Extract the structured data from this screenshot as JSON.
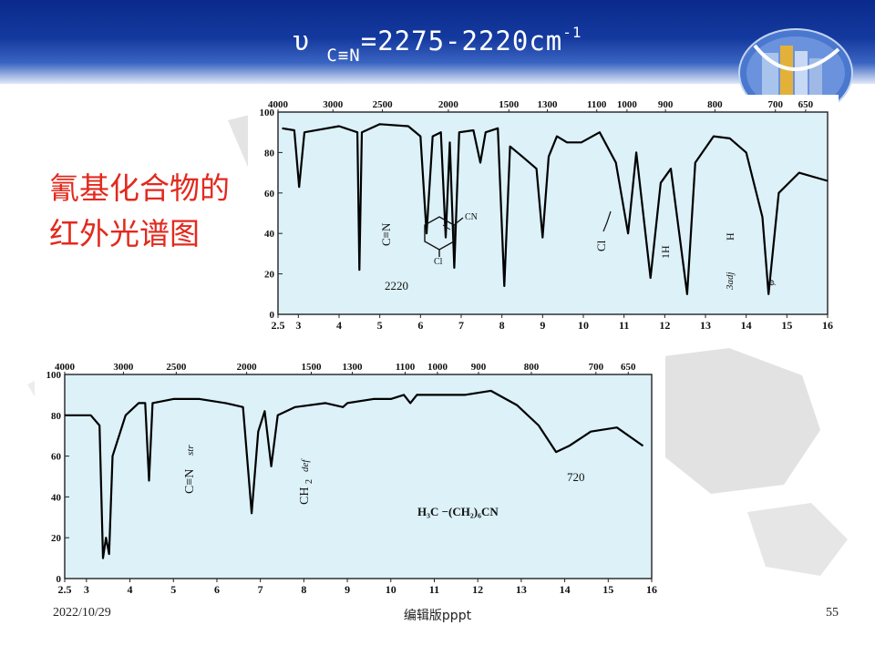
{
  "slide": {
    "title_symbol": "υ",
    "title_subscript": "C≡N",
    "title_main": "=2275-2220cm",
    "title_superscript": "-1",
    "side_title": "氰基化合物的红外光谱图",
    "footer_date": "2022/10/29",
    "footer_center": "编辑版pppt",
    "page_number": "55",
    "colors": {
      "header": "#14399e",
      "side_title": "#e22a1e",
      "plot_bg": "#dcf1f8",
      "curve": "#000000"
    },
    "icons": [
      "logo-graphic-icon",
      "world-map-watermark"
    ]
  },
  "chart_data": [
    {
      "type": "line",
      "top_axis_labels": [
        "4000",
        "3000",
        "2500",
        "2000",
        "1500",
        "1300",
        "1100",
        "1000",
        "900",
        "800",
        "700",
        "650"
      ],
      "bottom_axis_labels": [
        "2.5",
        "3",
        "4",
        "5",
        "6",
        "7",
        "8",
        "9",
        "10",
        "11",
        "12",
        "13",
        "14",
        "15",
        "16"
      ],
      "y_ticks": [
        "100",
        "80",
        "60",
        "40",
        "20",
        "0"
      ],
      "xlim": [
        2.5,
        16
      ],
      "ylim": [
        0,
        100
      ],
      "annotations": {
        "cn_label": "C≡N",
        "peak_value": "2220",
        "substituent_cn": "CN",
        "substituent_cl": "Cl",
        "cl_bond": "Cl",
        "ring_h": "1H",
        "h_label": "H",
        "adj_label": "3adj",
        "phi_label": "φ"
      },
      "series": [
        {
          "values": [
            [
              2.6,
              92
            ],
            [
              2.9,
              91
            ],
            [
              3.02,
              63
            ],
            [
              3.15,
              90
            ],
            [
              4.0,
              93
            ],
            [
              4.45,
              90
            ],
            [
              4.5,
              22
            ],
            [
              4.56,
              90
            ],
            [
              5.0,
              94
            ],
            [
              5.7,
              93
            ],
            [
              6.0,
              88
            ],
            [
              6.15,
              40
            ],
            [
              6.3,
              88
            ],
            [
              6.5,
              90
            ],
            [
              6.62,
              38
            ],
            [
              6.72,
              85
            ],
            [
              6.83,
              23
            ],
            [
              6.95,
              90
            ],
            [
              7.3,
              91
            ],
            [
              7.47,
              75
            ],
            [
              7.6,
              90
            ],
            [
              7.9,
              92
            ],
            [
              8.06,
              14
            ],
            [
              8.2,
              83
            ],
            [
              8.5,
              78
            ],
            [
              8.85,
              72
            ],
            [
              9.0,
              38
            ],
            [
              9.15,
              78
            ],
            [
              9.35,
              88
            ],
            [
              9.6,
              85
            ],
            [
              9.95,
              85
            ],
            [
              10.4,
              90
            ],
            [
              10.8,
              75
            ],
            [
              11.1,
              40
            ],
            [
              11.3,
              80
            ],
            [
              11.65,
              18
            ],
            [
              11.9,
              65
            ],
            [
              12.15,
              72
            ],
            [
              12.55,
              10
            ],
            [
              12.75,
              75
            ],
            [
              13.2,
              88
            ],
            [
              13.6,
              87
            ],
            [
              14.0,
              80
            ],
            [
              14.4,
              48
            ],
            [
              14.55,
              10
            ],
            [
              14.8,
              60
            ],
            [
              15.3,
              70
            ],
            [
              16.0,
              66
            ]
          ]
        }
      ]
    },
    {
      "type": "line",
      "top_axis_labels": [
        "4000",
        "3000",
        "2500",
        "2000",
        "1500",
        "1300",
        "1100",
        "1000",
        "900",
        "800",
        "700",
        "650"
      ],
      "bottom_axis_labels": [
        "2.5",
        "3",
        "4",
        "5",
        "6",
        "7",
        "8",
        "9",
        "10",
        "11",
        "12",
        "13",
        "14",
        "15",
        "16"
      ],
      "y_ticks": [
        "100",
        "80",
        "60",
        "40",
        "20",
        "0"
      ],
      "xlim": [
        2.5,
        16
      ],
      "ylim": [
        0,
        100
      ],
      "annotations": {
        "cn_label": "C≡N",
        "cn_suffix": "str",
        "ch2_label": "CH",
        "ch2_sub": "2",
        "ch2_suffix": "def",
        "peak_value": "720",
        "formula": "H₃C −(CH₂)₆CN"
      },
      "series": [
        {
          "values": [
            [
              2.5,
              80
            ],
            [
              3.1,
              80
            ],
            [
              3.3,
              75
            ],
            [
              3.38,
              10
            ],
            [
              3.45,
              20
            ],
            [
              3.52,
              12
            ],
            [
              3.6,
              60
            ],
            [
              3.9,
              80
            ],
            [
              4.2,
              86
            ],
            [
              4.35,
              86
            ],
            [
              4.44,
              48
            ],
            [
              4.52,
              86
            ],
            [
              5.0,
              88
            ],
            [
              5.6,
              88
            ],
            [
              6.2,
              86
            ],
            [
              6.6,
              84
            ],
            [
              6.8,
              32
            ],
            [
              6.95,
              72
            ],
            [
              7.1,
              82
            ],
            [
              7.25,
              55
            ],
            [
              7.4,
              80
            ],
            [
              7.8,
              84
            ],
            [
              8.5,
              86
            ],
            [
              8.9,
              84
            ],
            [
              9.0,
              86
            ],
            [
              9.6,
              88
            ],
            [
              10.0,
              88
            ],
            [
              10.3,
              90
            ],
            [
              10.45,
              86
            ],
            [
              10.6,
              90
            ],
            [
              11.0,
              90
            ],
            [
              11.7,
              90
            ],
            [
              12.3,
              92
            ],
            [
              12.9,
              85
            ],
            [
              13.4,
              75
            ],
            [
              13.8,
              62
            ],
            [
              14.1,
              65
            ],
            [
              14.6,
              72
            ],
            [
              15.2,
              74
            ],
            [
              15.8,
              65
            ]
          ]
        }
      ]
    }
  ]
}
